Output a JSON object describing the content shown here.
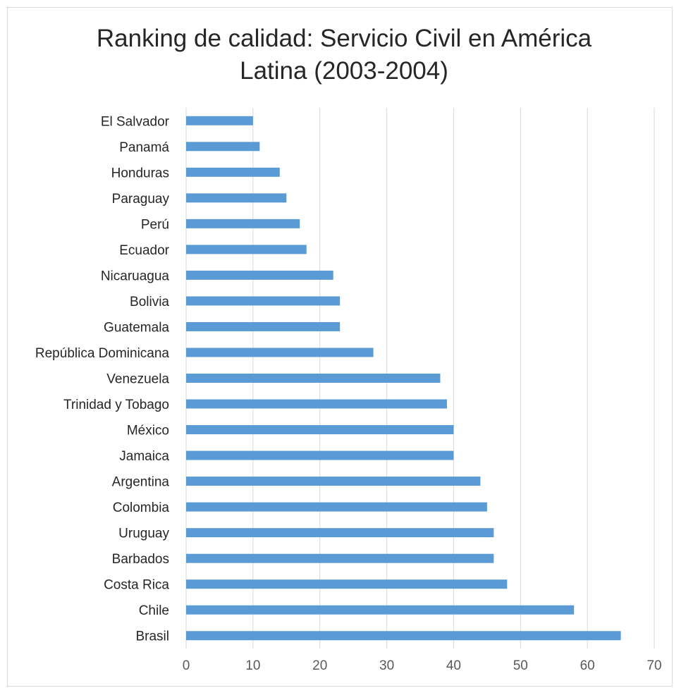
{
  "chart_data": {
    "type": "bar",
    "orientation": "horizontal",
    "title_lines": [
      "Ranking de calidad: Servicio Civil en América",
      "Latina (2003-2004)"
    ],
    "categories": [
      "Brasil",
      "Chile",
      "Costa Rica",
      "Barbados",
      "Uruguay",
      "Colombia",
      "Argentina",
      "Jamaica",
      "México",
      "Trinidad y Tobago",
      "Venezuela",
      "República Dominicana",
      "Guatemala",
      "Bolivia",
      "Nicaruagua",
      "Ecuador",
      "Perú",
      "Paraguay",
      "Honduras",
      "Panamá",
      "El Salvador"
    ],
    "values": [
      65,
      58,
      48,
      46,
      46,
      45,
      44,
      40,
      40,
      39,
      38,
      28,
      23,
      23,
      22,
      18,
      17,
      15,
      14,
      11,
      10
    ],
    "xlim": [
      0,
      70
    ],
    "xticks": [
      0,
      10,
      20,
      30,
      40,
      50,
      60,
      70
    ],
    "grid": true,
    "legend": "none",
    "bar_color": "#5b9bd5",
    "grid_color": "#d9d9d9"
  }
}
